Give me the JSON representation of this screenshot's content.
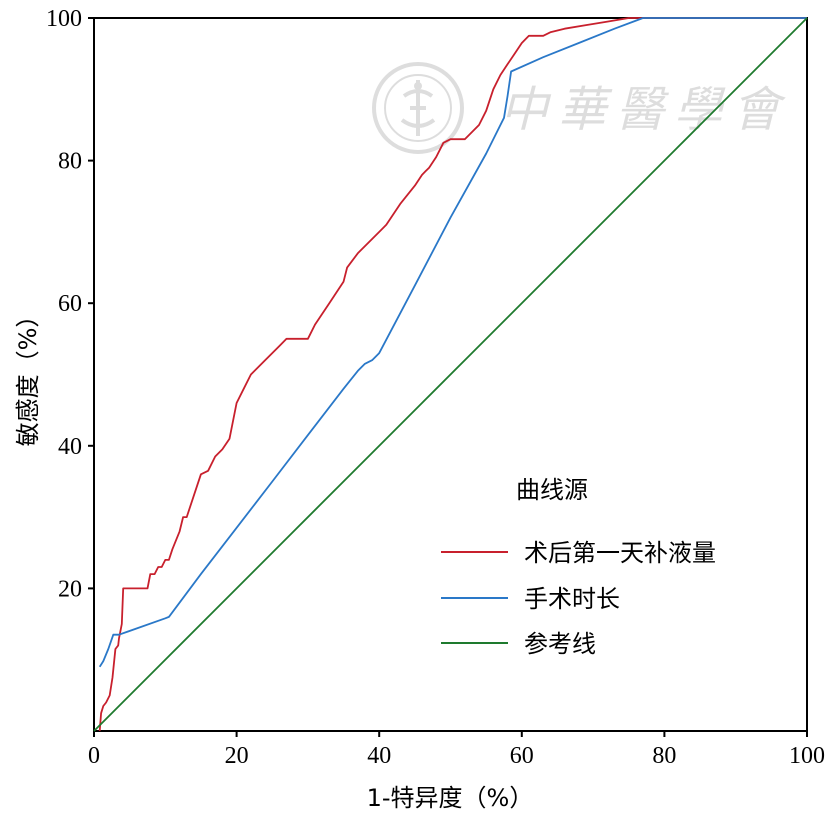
{
  "chart_data": {
    "type": "line",
    "xlabel": "1-特异度（%）",
    "ylabel": "敏感度（%）",
    "xlim": [
      0,
      100
    ],
    "ylim": [
      0,
      100
    ],
    "x_ticks": [
      0,
      20,
      40,
      60,
      80,
      100
    ],
    "y_ticks": [
      20,
      40,
      60,
      80,
      100
    ],
    "legend_title": "曲线源",
    "legend_position": "bottom-right",
    "grid": false,
    "series": [
      {
        "name": "术后第一天补液量",
        "color": "#c8202d",
        "x": [
          0.8,
          1.0,
          1.3,
          1.7,
          2.2,
          2.6,
          3.0,
          3.4,
          3.5,
          3.7,
          3.9,
          4.1,
          4.5,
          7.5,
          7.9,
          8.5,
          9.0,
          9.5,
          10.0,
          10.5,
          11.0,
          12.0,
          12.5,
          13.0,
          14.0,
          15.0,
          16.0,
          17.0,
          18.0,
          19.0,
          20.0,
          21.0,
          22.0,
          24.0,
          26.0,
          27.0,
          29.0,
          30.0,
          31.0,
          33.0,
          35.0,
          35.5,
          37.0,
          39.0,
          41.0,
          43.0,
          45.0,
          46.0,
          46.5,
          47.0,
          48.0,
          49.0,
          50.0,
          51.0,
          52.0,
          53.0,
          54.0,
          55.0,
          56.0,
          57.0,
          58.0,
          59.0,
          60.0,
          61.0,
          62.0,
          63.0,
          64.0,
          66.0,
          69.0,
          72.0,
          75.0,
          76.0,
          80.0,
          85.0,
          90.0,
          100.0
        ],
        "y": [
          0.0,
          2.5,
          3.5,
          4.0,
          5.0,
          7.5,
          11.5,
          12.0,
          13.0,
          14.0,
          15.0,
          20.0,
          20.0,
          20.0,
          22.0,
          22.0,
          23.0,
          23.0,
          24.0,
          24.0,
          25.5,
          28.0,
          30.0,
          30.0,
          33.0,
          36.0,
          36.5,
          38.5,
          39.5,
          41.0,
          46.0,
          48.0,
          50.0,
          52.0,
          54.0,
          55.0,
          55.0,
          55.0,
          57.0,
          60.0,
          63.0,
          65.0,
          67.0,
          69.0,
          71.0,
          74.0,
          76.5,
          78.0,
          78.5,
          79.0,
          80.5,
          82.5,
          83.0,
          83.0,
          83.0,
          84.0,
          85.0,
          87.0,
          90.0,
          92.0,
          93.5,
          95.0,
          96.5,
          97.5,
          97.5,
          97.5,
          98.0,
          98.5,
          99.0,
          99.5,
          100.0,
          100.0,
          100.0,
          100.0,
          100.0,
          100.0
        ]
      },
      {
        "name": "手术时长",
        "color": "#2a78c8",
        "x": [
          0.8,
          1.3,
          2.0,
          2.7,
          3.5,
          10.0,
          10.5,
          15.0,
          20.0,
          25.0,
          30.0,
          35.0,
          37.0,
          38.0,
          39.0,
          40.0,
          45.0,
          50.0,
          55.0,
          57.5,
          58.0,
          58.5,
          63.0,
          68.0,
          73.0,
          77.0,
          80.0,
          90.0,
          100.0
        ],
        "y": [
          9.0,
          9.8,
          11.5,
          13.5,
          13.5,
          15.8,
          16.0,
          22.0,
          28.5,
          35.0,
          41.5,
          48.0,
          50.5,
          51.5,
          52.0,
          53.0,
          62.5,
          72.0,
          81.0,
          86.0,
          89.0,
          92.5,
          94.5,
          96.5,
          98.5,
          100.0,
          100.0,
          100.0,
          100.0
        ]
      },
      {
        "name": "参考线",
        "color": "#1e7a2e",
        "x": [
          0,
          100
        ],
        "y": [
          0,
          100
        ]
      }
    ]
  },
  "watermark": {
    "text": "中華醫學會"
  }
}
